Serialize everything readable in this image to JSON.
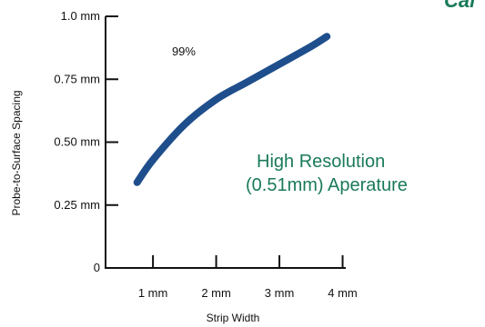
{
  "chart_data": {
    "type": "line",
    "title": "",
    "xlabel": "Strip Width",
    "ylabel": "Probe-to-Surface Spacing",
    "xlim": [
      0.25,
      4.05
    ],
    "ylim": [
      0,
      1.0
    ],
    "x_ticks": [
      {
        "value": 1,
        "label": "1 mm"
      },
      {
        "value": 2,
        "label": "2 mm"
      },
      {
        "value": 3,
        "label": "3 mm"
      },
      {
        "value": 4,
        "label": "4 mm"
      }
    ],
    "y_ticks": [
      {
        "value": 0,
        "label": "0"
      },
      {
        "value": 0.25,
        "label": "0.25 mm"
      },
      {
        "value": 0.5,
        "label": "0.50 mm"
      },
      {
        "value": 0.75,
        "label": "0.75 mm"
      },
      {
        "value": 1.0,
        "label": "1.0 mm"
      }
    ],
    "grid": false,
    "series": [
      {
        "color": "#1f4e8c",
        "x": [
          0.75,
          1.0,
          1.5,
          2.0,
          2.5,
          3.0,
          3.5,
          3.75
        ],
        "y": [
          0.34,
          0.43,
          0.57,
          0.67,
          0.74,
          0.81,
          0.88,
          0.92
        ]
      }
    ],
    "annotations": [
      {
        "text": "99%",
        "x": 1.3,
        "y": 0.86
      }
    ],
    "caption_lines": [
      "High Resolution",
      "(0.51mm) Aperature"
    ],
    "caption_color": "#1a7a5a",
    "corner_text": "Cal",
    "corner_color": "#1a7a5a",
    "axis_color": "#111111"
  }
}
